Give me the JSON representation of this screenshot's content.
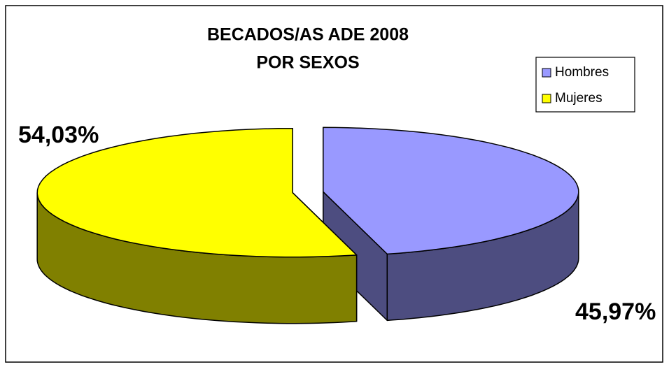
{
  "chart_data": {
    "type": "pie3d",
    "title": [
      "BECADOS/AS ADE 2008",
      "POR SEXOS"
    ],
    "categories": [
      "Hombres",
      "Mujeres"
    ],
    "values": [
      45.97,
      54.03
    ],
    "value_labels": [
      "45,97%",
      "54,03%"
    ],
    "colors": [
      "#9999ff",
      "#ffff00"
    ],
    "legend": "upper right"
  }
}
